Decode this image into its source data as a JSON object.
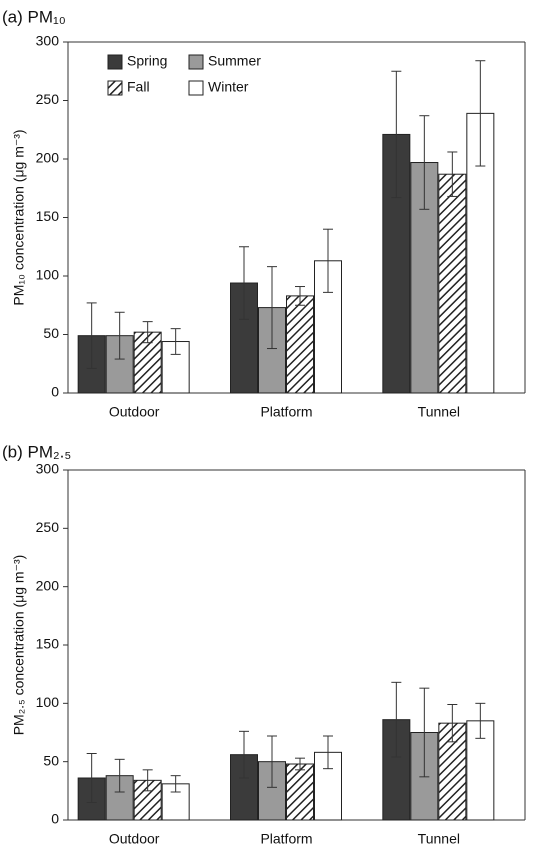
{
  "chart_data": [
    {
      "type": "bar",
      "title": "(a) PM₁₀",
      "y_label": "PM₁₀ concentration (μg m⁻³)",
      "categories": [
        "Outdoor",
        "Platform",
        "Tunnel"
      ],
      "series": [
        {
          "name": "Spring",
          "color": "#3b3b3b",
          "hatch": false,
          "values": [
            49,
            94,
            221
          ],
          "errors": [
            28,
            31,
            54
          ]
        },
        {
          "name": "Summer",
          "color": "#9a9a9a",
          "hatch": false,
          "values": [
            49,
            73,
            197
          ],
          "errors": [
            20,
            35,
            40
          ]
        },
        {
          "name": "Fall",
          "color": "#222222",
          "hatch": true,
          "values": [
            52,
            83,
            187
          ],
          "errors": [
            9,
            8,
            19
          ]
        },
        {
          "name": "Winter",
          "color": "#ffffff",
          "hatch": false,
          "values": [
            44,
            113,
            239
          ],
          "errors": [
            11,
            27,
            45
          ]
        }
      ],
      "ylim": [
        0,
        300
      ],
      "yticks": [
        0,
        50,
        100,
        150,
        200,
        250,
        300
      ],
      "legend": "upper left"
    },
    {
      "type": "bar",
      "title": "(b) PM₂.₅",
      "y_label": "PM₂.₅ concentration (μg m⁻³)",
      "categories": [
        "Outdoor",
        "Platform",
        "Tunnel"
      ],
      "series": [
        {
          "color": "#3b3b3b",
          "hatch": false,
          "values": [
            36,
            56,
            86
          ],
          "errors": [
            21,
            20,
            32
          ]
        },
        {
          "color": "#9a9a9a",
          "hatch": false,
          "values": [
            38,
            50,
            75
          ],
          "errors": [
            14,
            22,
            38
          ]
        },
        {
          "color": "#222222",
          "hatch": true,
          "values": [
            34,
            48,
            83
          ],
          "errors": [
            9,
            5,
            16
          ]
        },
        {
          "color": "#ffffff",
          "hatch": false,
          "values": [
            31,
            58,
            85
          ],
          "errors": [
            7,
            14,
            15
          ]
        }
      ],
      "ylim": [
        0,
        300
      ],
      "yticks": [
        0,
        50,
        100,
        150,
        200,
        250,
        300
      ]
    }
  ]
}
